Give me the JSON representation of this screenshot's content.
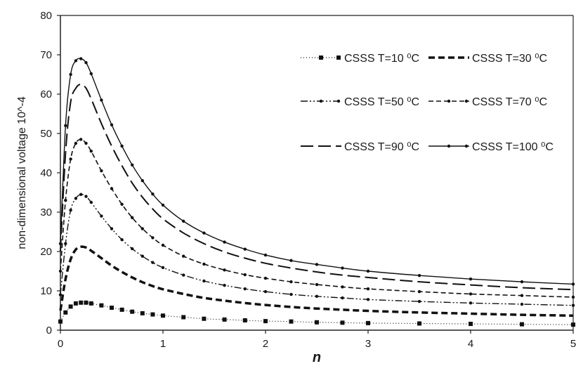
{
  "chart_data": {
    "type": "line",
    "xlabel": "n",
    "ylabel": "non-dimensional voltage 10^-4",
    "xlim": [
      0,
      5
    ],
    "ylim": [
      0,
      80
    ],
    "x_ticks": [
      "0",
      "1",
      "2",
      "3",
      "4",
      "5"
    ],
    "y_ticks": [
      "0",
      "10",
      "20",
      "30",
      "40",
      "50",
      "60",
      "70",
      "80"
    ],
    "grid": false,
    "legend_position": "top-right",
    "x": [
      0,
      0.05,
      0.1,
      0.15,
      0.2,
      0.25,
      0.3,
      0.4,
      0.5,
      0.6,
      0.7,
      0.8,
      0.9,
      1.0,
      1.2,
      1.4,
      1.6,
      1.8,
      2.0,
      2.25,
      2.5,
      2.75,
      3.0,
      3.5,
      4.0,
      4.5,
      5.0
    ],
    "series": [
      {
        "name": "CSSS T=10 ⁰C",
        "style": "dotted-square",
        "values": [
          2.2,
          4.5,
          6.0,
          6.8,
          7.0,
          7.0,
          6.8,
          6.3,
          5.7,
          5.2,
          4.7,
          4.3,
          4.0,
          3.7,
          3.3,
          2.9,
          2.7,
          2.5,
          2.3,
          2.2,
          2.0,
          1.9,
          1.8,
          1.7,
          1.6,
          1.5,
          1.4
        ]
      },
      {
        "name": "CSSS T=30 ⁰C",
        "style": "heavy-dash",
        "values": [
          5,
          13,
          18,
          20.5,
          21.2,
          21.0,
          20.2,
          18.3,
          16.4,
          14.8,
          13.4,
          12.2,
          11.2,
          10.4,
          9.2,
          8.2,
          7.5,
          6.9,
          6.4,
          5.9,
          5.5,
          5.2,
          4.9,
          4.5,
          4.2,
          3.9,
          3.7
        ]
      },
      {
        "name": "CSSS T=50 ⁰C",
        "style": "dash-dot-dot",
        "values": [
          9,
          22,
          30.5,
          33.5,
          34.5,
          34.0,
          32.5,
          29.0,
          25.8,
          23.0,
          20.7,
          18.8,
          17.2,
          15.9,
          14.0,
          12.5,
          11.4,
          10.5,
          9.8,
          9.1,
          8.6,
          8.2,
          7.8,
          7.3,
          6.9,
          6.6,
          6.3
        ]
      },
      {
        "name": "CSSS T=70 ⁰C",
        "style": "dash-marker",
        "values": [
          15,
          33,
          43.5,
          47.5,
          48.5,
          47.5,
          45.5,
          40.5,
          36.0,
          32.0,
          28.6,
          25.8,
          23.5,
          21.6,
          18.8,
          16.8,
          15.3,
          14.1,
          13.2,
          12.3,
          11.6,
          11.0,
          10.5,
          9.8,
          9.2,
          8.8,
          8.4
        ]
      },
      {
        "name": "CSSS T=90 ⁰C",
        "style": "long-dash",
        "values": [
          20,
          45,
          58,
          61.5,
          62.5,
          61.5,
          58.8,
          52.5,
          46.8,
          41.8,
          37.4,
          33.8,
          30.8,
          28.3,
          24.7,
          22.0,
          19.9,
          18.3,
          17.0,
          15.8,
          14.8,
          14.0,
          13.4,
          12.3,
          11.5,
          10.8,
          10.3
        ]
      },
      {
        "name": "CSSS T=100 ⁰C",
        "style": "solid-marker",
        "values": [
          22,
          52,
          65,
          68.5,
          69.0,
          68.0,
          65.2,
          58.5,
          52.2,
          46.8,
          42.0,
          38.0,
          34.6,
          31.8,
          27.7,
          24.7,
          22.4,
          20.6,
          19.1,
          17.7,
          16.7,
          15.8,
          15.0,
          13.9,
          13.0,
          12.3,
          11.7
        ]
      }
    ]
  }
}
